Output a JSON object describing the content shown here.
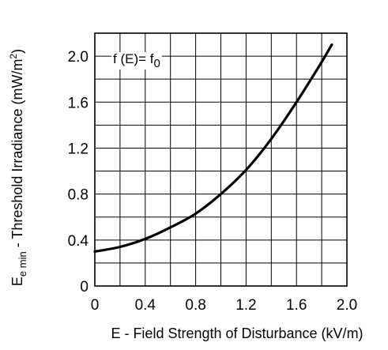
{
  "chart_data": {
    "type": "line",
    "title": "",
    "xlabel": "E - Field Strength of Disturbance (kV/m)",
    "ylabel": {
      "prefix": "E",
      "subscript": "e min",
      "main": " - Threshold Irradiance (mW/m",
      "superscript": "2",
      "suffix": ")"
    },
    "xlim": [
      0,
      2.0
    ],
    "ylim": [
      0,
      2.2
    ],
    "x_ticks": [
      0,
      0.2,
      0.4,
      0.6,
      0.8,
      1.0,
      1.2,
      1.4,
      1.6,
      1.8,
      2.0
    ],
    "y_ticks": [
      0,
      0.2,
      0.4,
      0.6,
      0.8,
      1.0,
      1.2,
      1.4,
      1.6,
      1.8,
      2.0,
      2.2
    ],
    "x_tick_labels": [
      {
        "value": 0,
        "label": "0"
      },
      {
        "value": 0.4,
        "label": "0.4"
      },
      {
        "value": 0.8,
        "label": "0.8"
      },
      {
        "value": 1.2,
        "label": "1.2"
      },
      {
        "value": 1.6,
        "label": "1.6"
      },
      {
        "value": 2.0,
        "label": "2.0"
      }
    ],
    "y_tick_labels": [
      {
        "value": 0,
        "label": "0"
      },
      {
        "value": 0.4,
        "label": "0.4"
      },
      {
        "value": 0.8,
        "label": "0.8"
      },
      {
        "value": 1.2,
        "label": "1.2"
      },
      {
        "value": 1.6,
        "label": "1.6"
      },
      {
        "value": 2.0,
        "label": "2.0"
      }
    ],
    "grid": true,
    "annotation": {
      "main": "f (E)= f",
      "subscript": "0"
    },
    "series": [
      {
        "color": "#000000",
        "x": [
          0,
          0.2,
          0.4,
          0.6,
          0.8,
          1.0,
          1.2,
          1.4,
          1.6,
          1.8,
          1.88
        ],
        "y": [
          0.3,
          0.34,
          0.41,
          0.51,
          0.63,
          0.8,
          1.01,
          1.28,
          1.6,
          1.95,
          2.1
        ]
      }
    ]
  }
}
